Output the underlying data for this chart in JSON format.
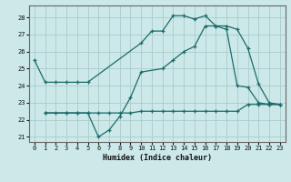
{
  "xlabel": "Humidex (Indice chaleur)",
  "bg_color": "#cce8e8",
  "grid_color": "#aacccc",
  "line_color": "#1a6b6b",
  "xlim": [
    -0.5,
    23.5
  ],
  "ylim": [
    20.7,
    28.7
  ],
  "yticks": [
    21,
    22,
    23,
    24,
    25,
    26,
    27,
    28
  ],
  "xticks": [
    0,
    1,
    2,
    3,
    4,
    5,
    6,
    7,
    8,
    9,
    10,
    11,
    12,
    13,
    14,
    15,
    16,
    17,
    18,
    19,
    20,
    21,
    22,
    23
  ],
  "series": [
    {
      "x": [
        0,
        1,
        2,
        3,
        4,
        5,
        10,
        11,
        12,
        13,
        14,
        15,
        16,
        17,
        18,
        19,
        20,
        21,
        22,
        23
      ],
      "y": [
        25.5,
        24.2,
        24.2,
        24.2,
        24.2,
        24.2,
        26.5,
        27.2,
        27.2,
        28.1,
        28.1,
        27.9,
        28.1,
        27.5,
        27.5,
        27.3,
        26.2,
        24.1,
        23.0,
        22.9
      ]
    },
    {
      "x": [
        1,
        3,
        4,
        5,
        6,
        7,
        8,
        9,
        10,
        12,
        13,
        14,
        15,
        16,
        17,
        18,
        19,
        20,
        21,
        22,
        23
      ],
      "y": [
        22.4,
        22.4,
        22.4,
        22.4,
        21.0,
        21.4,
        22.2,
        23.3,
        24.8,
        25.0,
        25.5,
        26.0,
        26.3,
        27.5,
        27.5,
        27.3,
        24.0,
        23.9,
        23.0,
        22.9,
        22.9
      ]
    },
    {
      "x": [
        1,
        2,
        3,
        4,
        5,
        6,
        7,
        8,
        9,
        10,
        11,
        12,
        13,
        14,
        15,
        16,
        17,
        18,
        19,
        20,
        21,
        22,
        23
      ],
      "y": [
        22.4,
        22.4,
        22.4,
        22.4,
        22.4,
        22.4,
        22.4,
        22.4,
        22.4,
        22.5,
        22.5,
        22.5,
        22.5,
        22.5,
        22.5,
        22.5,
        22.5,
        22.5,
        22.5,
        22.9,
        22.9,
        22.9,
        22.9
      ]
    }
  ]
}
